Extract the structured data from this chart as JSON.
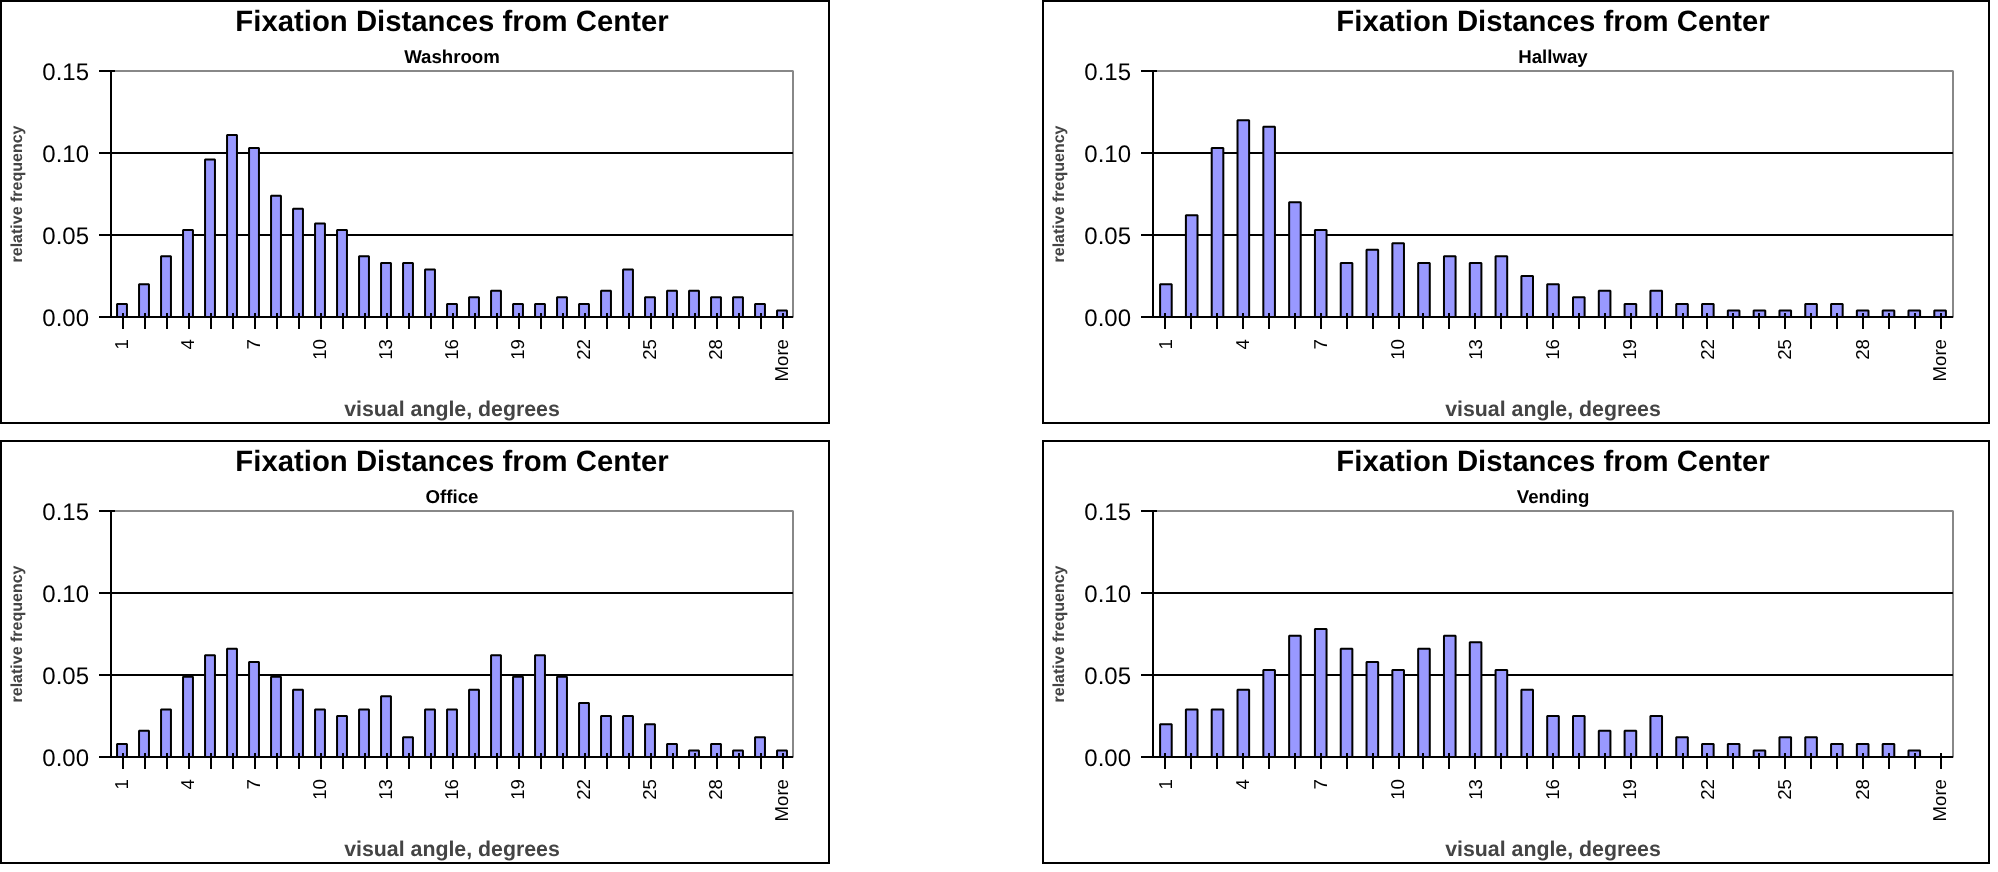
{
  "chart_data": [
    {
      "type": "bar",
      "title": "Fixation Distances from Center",
      "subtitle": "Washroom",
      "xlabel": "visual angle, degrees",
      "ylabel": "relative frequency",
      "categories": [
        "1",
        null,
        null,
        "4",
        null,
        null,
        "7",
        null,
        null,
        "10",
        null,
        null,
        "13",
        null,
        null,
        "16",
        null,
        null,
        "19",
        null,
        null,
        "22",
        null,
        null,
        "25",
        null,
        null,
        "28",
        null,
        null,
        "More"
      ],
      "values": [
        0.008,
        0.02,
        0.037,
        0.053,
        0.096,
        0.111,
        0.103,
        0.074,
        0.066,
        0.057,
        0.053,
        0.037,
        0.033,
        0.033,
        0.029,
        0.008,
        0.012,
        0.016,
        0.008,
        0.008,
        0.012,
        0.008,
        0.016,
        0.029,
        0.012,
        0.016,
        0.016,
        0.012,
        0.012,
        0.008,
        0.004
      ],
      "color": "#9999ff",
      "ylim": [
        0,
        0.15
      ],
      "yticks": [
        {
          "value": 0,
          "label": "0.00"
        },
        {
          "value": 0.05,
          "label": "0.05"
        },
        {
          "value": 0.1,
          "label": "0.10"
        },
        {
          "value": 0.15,
          "label": "0.15"
        }
      ],
      "grid": "y"
    },
    {
      "type": "bar",
      "title": "Fixation Distances from Center",
      "subtitle": "Hallway",
      "xlabel": "visual angle, degrees",
      "ylabel": "relative frequency",
      "categories": [
        "1",
        null,
        null,
        "4",
        null,
        null,
        "7",
        null,
        null,
        "10",
        null,
        null,
        "13",
        null,
        null,
        "16",
        null,
        null,
        "19",
        null,
        null,
        "22",
        null,
        null,
        "25",
        null,
        null,
        "28",
        null,
        null,
        "More"
      ],
      "values": [
        0.02,
        0.062,
        0.103,
        0.12,
        0.116,
        0.07,
        0.053,
        0.033,
        0.041,
        0.045,
        0.033,
        0.037,
        0.033,
        0.037,
        0.025,
        0.02,
        0.012,
        0.016,
        0.008,
        0.016,
        0.008,
        0.008,
        0.004,
        0.004,
        0.004,
        0.008,
        0.008,
        0.004,
        0.004,
        0.004,
        0.004
      ],
      "color": "#9999ff",
      "ylim": [
        0,
        0.15
      ],
      "yticks": [
        {
          "value": 0,
          "label": "0.00"
        },
        {
          "value": 0.05,
          "label": "0.05"
        },
        {
          "value": 0.1,
          "label": "0.10"
        },
        {
          "value": 0.15,
          "label": "0.15"
        }
      ],
      "grid": "y"
    },
    {
      "type": "bar",
      "title": "Fixation Distances from Center",
      "subtitle": "Office",
      "xlabel": "visual angle, degrees",
      "ylabel": "relative frequency",
      "categories": [
        "1",
        null,
        null,
        "4",
        null,
        null,
        "7",
        null,
        null,
        "10",
        null,
        null,
        "13",
        null,
        null,
        "16",
        null,
        null,
        "19",
        null,
        null,
        "22",
        null,
        null,
        "25",
        null,
        null,
        "28",
        null,
        null,
        "More"
      ],
      "values": [
        0.008,
        0.016,
        0.029,
        0.049,
        0.062,
        0.066,
        0.058,
        0.049,
        0.041,
        0.029,
        0.025,
        0.029,
        0.037,
        0.012,
        0.029,
        0.029,
        0.041,
        0.062,
        0.049,
        0.062,
        0.049,
        0.033,
        0.025,
        0.025,
        0.02,
        0.008,
        0.004,
        0.008,
        0.004,
        0.012,
        0.004
      ],
      "color": "#9999ff",
      "ylim": [
        0,
        0.15
      ],
      "yticks": [
        {
          "value": 0,
          "label": "0.00"
        },
        {
          "value": 0.05,
          "label": "0.05"
        },
        {
          "value": 0.1,
          "label": "0.10"
        },
        {
          "value": 0.15,
          "label": "0.15"
        }
      ],
      "grid": "y"
    },
    {
      "type": "bar",
      "title": "Fixation Distances from Center",
      "subtitle": "Vending",
      "xlabel": "visual angle, degrees",
      "ylabel": "relative frequency",
      "categories": [
        "1",
        null,
        null,
        "4",
        null,
        null,
        "7",
        null,
        null,
        "10",
        null,
        null,
        "13",
        null,
        null,
        "16",
        null,
        null,
        "19",
        null,
        null,
        "22",
        null,
        null,
        "25",
        null,
        null,
        "28",
        null,
        null,
        "More"
      ],
      "values": [
        0.02,
        0.029,
        0.029,
        0.041,
        0.053,
        0.074,
        0.078,
        0.066,
        0.058,
        0.053,
        0.066,
        0.074,
        0.07,
        0.053,
        0.041,
        0.025,
        0.025,
        0.016,
        0.016,
        0.025,
        0.012,
        0.008,
        0.008,
        0.004,
        0.012,
        0.012,
        0.008,
        0.008,
        0.008,
        0.004,
        null
      ],
      "color": "#9999ff",
      "ylim": [
        0,
        0.15
      ],
      "yticks": [
        {
          "value": 0,
          "label": "0.00"
        },
        {
          "value": 0.05,
          "label": "0.05"
        },
        {
          "value": 0.1,
          "label": "0.10"
        },
        {
          "value": 0.15,
          "label": "0.15"
        }
      ],
      "grid": "y"
    }
  ]
}
